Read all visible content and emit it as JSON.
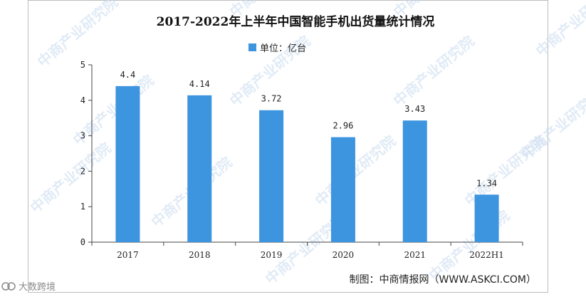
{
  "colors": {
    "bar": "#3d94df",
    "axis": "#444444",
    "watermark": "#c9dbef"
  },
  "credit": "制图：中商情报网（WWW.ASKCI.COM）",
  "watermark_text": "中商产业研究院",
  "corner_badge": {
    "icon": "source-icon",
    "text": "大数跨境"
  },
  "chart_data": {
    "type": "bar",
    "title": "2017-2022年上半年中国智能手机出货量统计情况",
    "legend": [
      "单位：亿台"
    ],
    "legend_position": "top-center",
    "categories": [
      "2017",
      "2018",
      "2019",
      "2020",
      "2021",
      "2022H1"
    ],
    "series": [
      {
        "name": "单位：亿台",
        "values": [
          4.4,
          4.14,
          3.72,
          2.96,
          3.43,
          1.34
        ]
      }
    ],
    "value_labels": [
      "4.4",
      "4.14",
      "3.72",
      "2.96",
      "3.43",
      "1.34"
    ],
    "yticks": [
      "0",
      "1",
      "2",
      "3",
      "4",
      "5"
    ],
    "ylim": [
      0,
      5
    ],
    "xlabel": "",
    "ylabel": "",
    "grid": false
  }
}
